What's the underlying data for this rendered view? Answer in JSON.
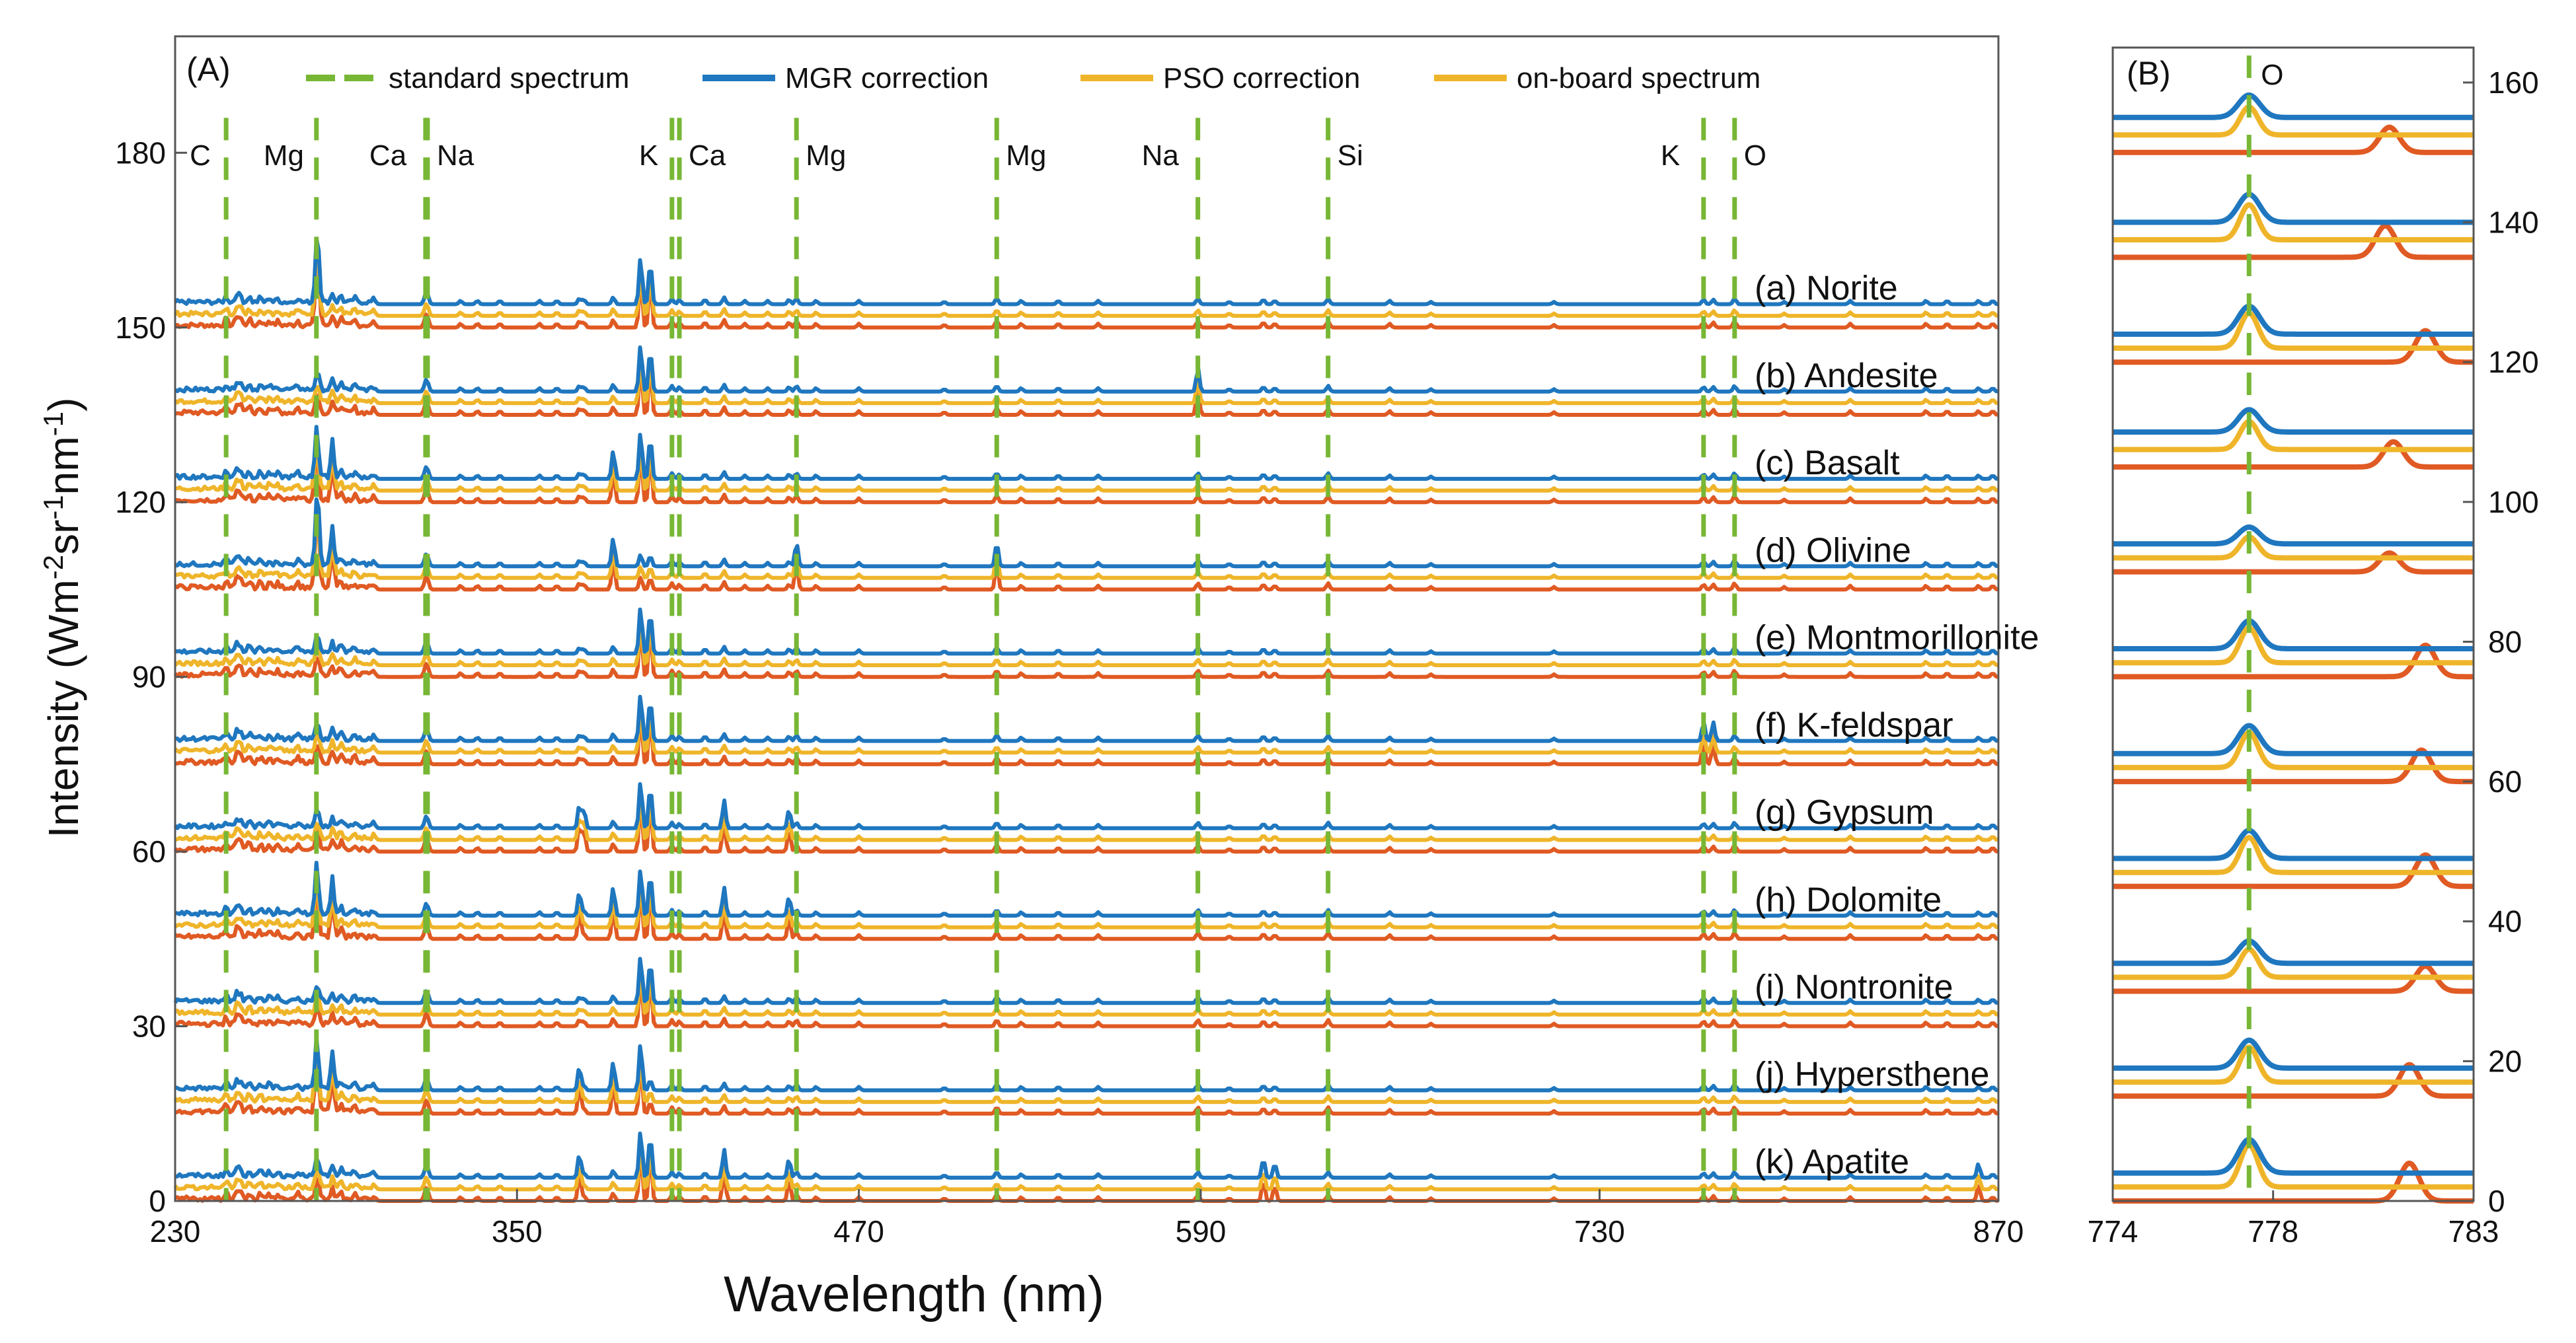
{
  "colors": {
    "standard": "#77b735",
    "mgr": "#1f77bf",
    "pso": "#efb52a",
    "onboard": "#e05a23",
    "frame": "#555555"
  },
  "legend": [
    {
      "label": "standard spectrum",
      "color": "#77b735",
      "dashed": true
    },
    {
      "label": "MGR correction",
      "color": "#1f77bf",
      "dashed": false
    },
    {
      "label": "PSO correction",
      "color": "#efb52a",
      "dashed": false
    },
    {
      "label": "on-board spectrum",
      "color": "#efb52a",
      "dashed": false
    }
  ],
  "chart_data": [
    {
      "panel": "(A)",
      "type": "line",
      "xlabel": "Wavelength (nm)",
      "ylabel_parts": [
        "Intensity (Wm",
        "-2",
        "sr",
        "-1",
        "nm",
        "-1",
        ")"
      ],
      "xlim": [
        230,
        870
      ],
      "ylim": [
        0,
        200
      ],
      "xticks": [
        230,
        350,
        470,
        590,
        730,
        870
      ],
      "yticks": [
        0,
        30,
        60,
        90,
        120,
        150,
        180
      ],
      "element_lines": [
        {
          "label": "C",
          "x": 247.9
        },
        {
          "label": "Mg",
          "x": 279.6
        },
        {
          "label": "Ca",
          "x": 317.9
        },
        {
          "label": "Na",
          "x": 318.6
        },
        {
          "label": "K",
          "x": 404.4
        },
        {
          "label": "Ca",
          "x": 407.0
        },
        {
          "label": "Mg",
          "x": 448.1
        },
        {
          "label": "Mg",
          "x": 518.4
        },
        {
          "label": "Na",
          "x": 589.0
        },
        {
          "label": "Si",
          "x": 634.7
        },
        {
          "label": "K",
          "x": 766.5
        },
        {
          "label": "O",
          "x": 777.4
        }
      ],
      "samples": [
        {
          "label": "(a) Norite",
          "baseline": 150
        },
        {
          "label": "(b) Andesite",
          "baseline": 135
        },
        {
          "label": "(c) Basalt",
          "baseline": 120
        },
        {
          "label": "(d) Olivine",
          "baseline": 105
        },
        {
          "label": "(e) Montmorillonite",
          "baseline": 90
        },
        {
          "label": "(f) K-feldspar",
          "baseline": 75
        },
        {
          "label": "(g) Gypsum",
          "baseline": 60
        },
        {
          "label": "(h) Dolomite",
          "baseline": 45
        },
        {
          "label": "(i) Nontronite",
          "baseline": 30
        },
        {
          "label": "(j) Hypersthene",
          "baseline": 15
        },
        {
          "label": "(k) Apatite",
          "baseline": 0
        }
      ],
      "series_offsets": {
        "onboard": 0,
        "pso": 2,
        "mgr": 4
      }
    },
    {
      "panel": "(B)",
      "type": "line",
      "element_line": {
        "label": "O",
        "x": 777.4
      },
      "xlim": [
        774,
        783
      ],
      "ylim": [
        0,
        165
      ],
      "xticks": [
        774,
        778,
        783
      ],
      "yticks": [
        0,
        20,
        40,
        60,
        80,
        100,
        120,
        140,
        160
      ],
      "traces": [
        {
          "mgr_base": 155,
          "onboard_base": 150,
          "shift": 780.9,
          "peak": 4
        },
        {
          "mgr_base": 140,
          "onboard_base": 135,
          "shift": 780.8,
          "peak": 5
        },
        {
          "mgr_base": 124,
          "onboard_base": 120,
          "shift": 781.8,
          "peak": 5
        },
        {
          "mgr_base": 110,
          "onboard_base": 105,
          "shift": 781.0,
          "peak": 4
        },
        {
          "mgr_base": 94,
          "onboard_base": 90,
          "shift": 780.9,
          "peak": 3
        },
        {
          "mgr_base": 79,
          "onboard_base": 75,
          "shift": 781.8,
          "peak": 5
        },
        {
          "mgr_base": 64,
          "onboard_base": 60,
          "shift": 781.7,
          "peak": 5
        },
        {
          "mgr_base": 49,
          "onboard_base": 45,
          "shift": 781.8,
          "peak": 5
        },
        {
          "mgr_base": 34,
          "onboard_base": 30,
          "shift": 781.8,
          "peak": 4
        },
        {
          "mgr_base": 19,
          "onboard_base": 15,
          "shift": 781.4,
          "peak": 5
        },
        {
          "mgr_base": 4,
          "onboard_base": 0,
          "shift": 781.4,
          "peak": 6
        }
      ]
    }
  ]
}
